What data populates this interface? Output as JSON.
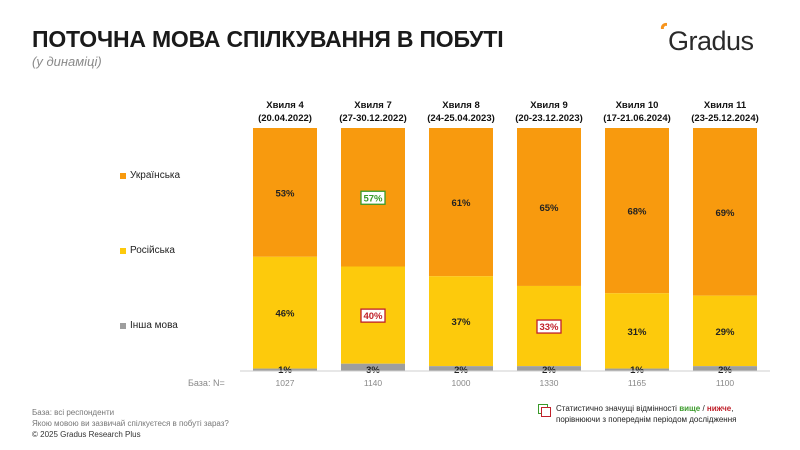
{
  "header": {
    "title": "ПОТОЧНА МОВА СПІЛКУВАННЯ В ПОБУТІ",
    "subtitle": "(у динаміці)",
    "logo_text": "Gradus"
  },
  "colors": {
    "ukrainian": "#f89a0e",
    "russian": "#fdca0c",
    "other": "#9e9e9e",
    "higher": "#3a9a2a",
    "lower": "#c0202a"
  },
  "chart_data": {
    "type": "bar",
    "stacked": true,
    "title": "ПОТОЧНА МОВА СПІЛКУВАННЯ В ПОБУТІ",
    "subtitle": "(у динаміці)",
    "ylim": [
      0,
      100
    ],
    "unit": "%",
    "categories": [
      {
        "wave": "Хвиля 4",
        "dates": "(20.04.2022)"
      },
      {
        "wave": "Хвиля 7",
        "dates": "(27-30.12.2022)"
      },
      {
        "wave": "Хвиля 8",
        "dates": "(24-25.04.2023)"
      },
      {
        "wave": "Хвиля 9",
        "dates": "(20-23.12.2023)"
      },
      {
        "wave": "Хвиля 10",
        "dates": "(17-21.06.2024)"
      },
      {
        "wave": "Хвиля 11",
        "dates": "(23-25.12.2024)"
      }
    ],
    "series": [
      {
        "name": "Українська",
        "key": "ukrainian",
        "values": [
          53,
          57,
          61,
          65,
          68,
          69
        ],
        "significance": [
          "",
          "higher",
          "",
          "",
          "",
          ""
        ]
      },
      {
        "name": "Російська",
        "key": "russian",
        "values": [
          46,
          40,
          37,
          33,
          31,
          29
        ],
        "significance": [
          "",
          "lower",
          "",
          "lower",
          "",
          ""
        ]
      },
      {
        "name": "Інша мова",
        "key": "other",
        "values": [
          1,
          3,
          2,
          2,
          1,
          2
        ],
        "significance": [
          "",
          "",
          "",
          "",
          "",
          ""
        ]
      }
    ],
    "base_label": "База: N=",
    "base_n": [
      "1027",
      "1140",
      "1000",
      "1330",
      "1165",
      "1100"
    ]
  },
  "footer": {
    "base_note": "База: всі респонденти",
    "question": "Якою мовою ви зазвичай спілкуєтеся в побуті зараз?",
    "copyright": "© 2025 Gradus Research Plus"
  },
  "significance_note": {
    "prefix": "Статистично значущі відмінності ",
    "higher": "вище",
    "separator": " / ",
    "lower": "нижче",
    "suffix": ",",
    "line2": "порівнюючи з попереднім періодом дослідження"
  }
}
